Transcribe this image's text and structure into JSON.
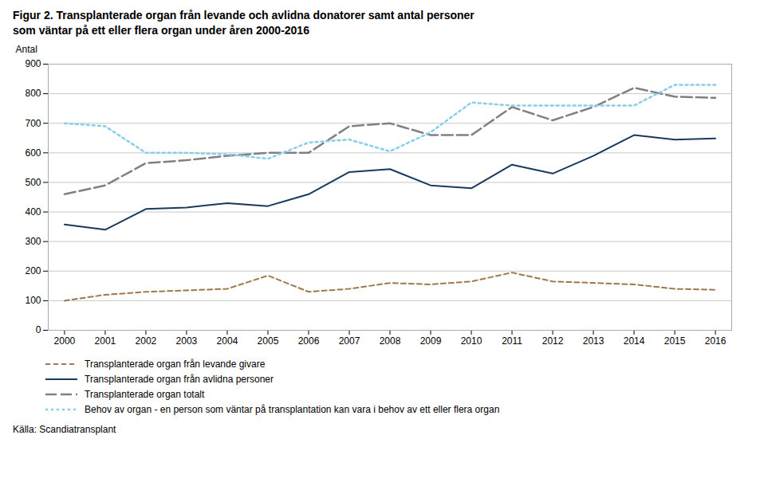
{
  "chart_data": {
    "type": "line",
    "title": "Figur 2. Transplanterade organ från levande och avlidna donatorer samt antal personer\nsom väntar på ett eller flera organ under åren 2000-2016",
    "ylabel": "Antal",
    "source": "Källa: Scandiatransplant",
    "x": [
      2000,
      2001,
      2002,
      2003,
      2004,
      2005,
      2006,
      2007,
      2008,
      2009,
      2010,
      2011,
      2012,
      2013,
      2014,
      2015,
      2016
    ],
    "xlim": [
      1999.6,
      2016.4
    ],
    "xticks": [
      2000,
      2001,
      2002,
      2003,
      2004,
      2005,
      2006,
      2007,
      2008,
      2009,
      2010,
      2011,
      2012,
      2013,
      2014,
      2015,
      2016
    ],
    "ylim": [
      0,
      900
    ],
    "yticks": [
      0,
      100,
      200,
      300,
      400,
      500,
      600,
      700,
      800,
      900
    ],
    "grid": true,
    "legend": "bottom",
    "series": [
      {
        "name": "Transplanterade organ från levande givare",
        "color": "#a07850",
        "line_style": "dashed",
        "values": [
          100,
          120,
          130,
          135,
          140,
          185,
          130,
          140,
          160,
          155,
          165,
          195,
          165,
          160,
          155,
          140,
          137
        ]
      },
      {
        "name": "Transplanterade organ från avlidna personer",
        "color": "#1a3a5c",
        "line_style": "solid",
        "values": [
          358,
          340,
          410,
          415,
          430,
          420,
          460,
          535,
          545,
          490,
          480,
          560,
          530,
          590,
          660,
          645,
          649
        ]
      },
      {
        "name": "Transplanterade organ totalt",
        "color": "#808080",
        "line_style": "longdash",
        "values": [
          460,
          490,
          565,
          575,
          590,
          600,
          600,
          690,
          700,
          660,
          660,
          755,
          710,
          755,
          820,
          790,
          786
        ]
      },
      {
        "name": "Behov av organ - en person som väntar på transplantation kan vara i behov av ett eller flera organ",
        "color": "#87ceeb",
        "line_style": "dotted",
        "values": [
          700,
          690,
          600,
          600,
          595,
          580,
          635,
          645,
          605,
          670,
          770,
          760,
          760,
          760,
          760,
          830,
          830
        ]
      }
    ]
  }
}
